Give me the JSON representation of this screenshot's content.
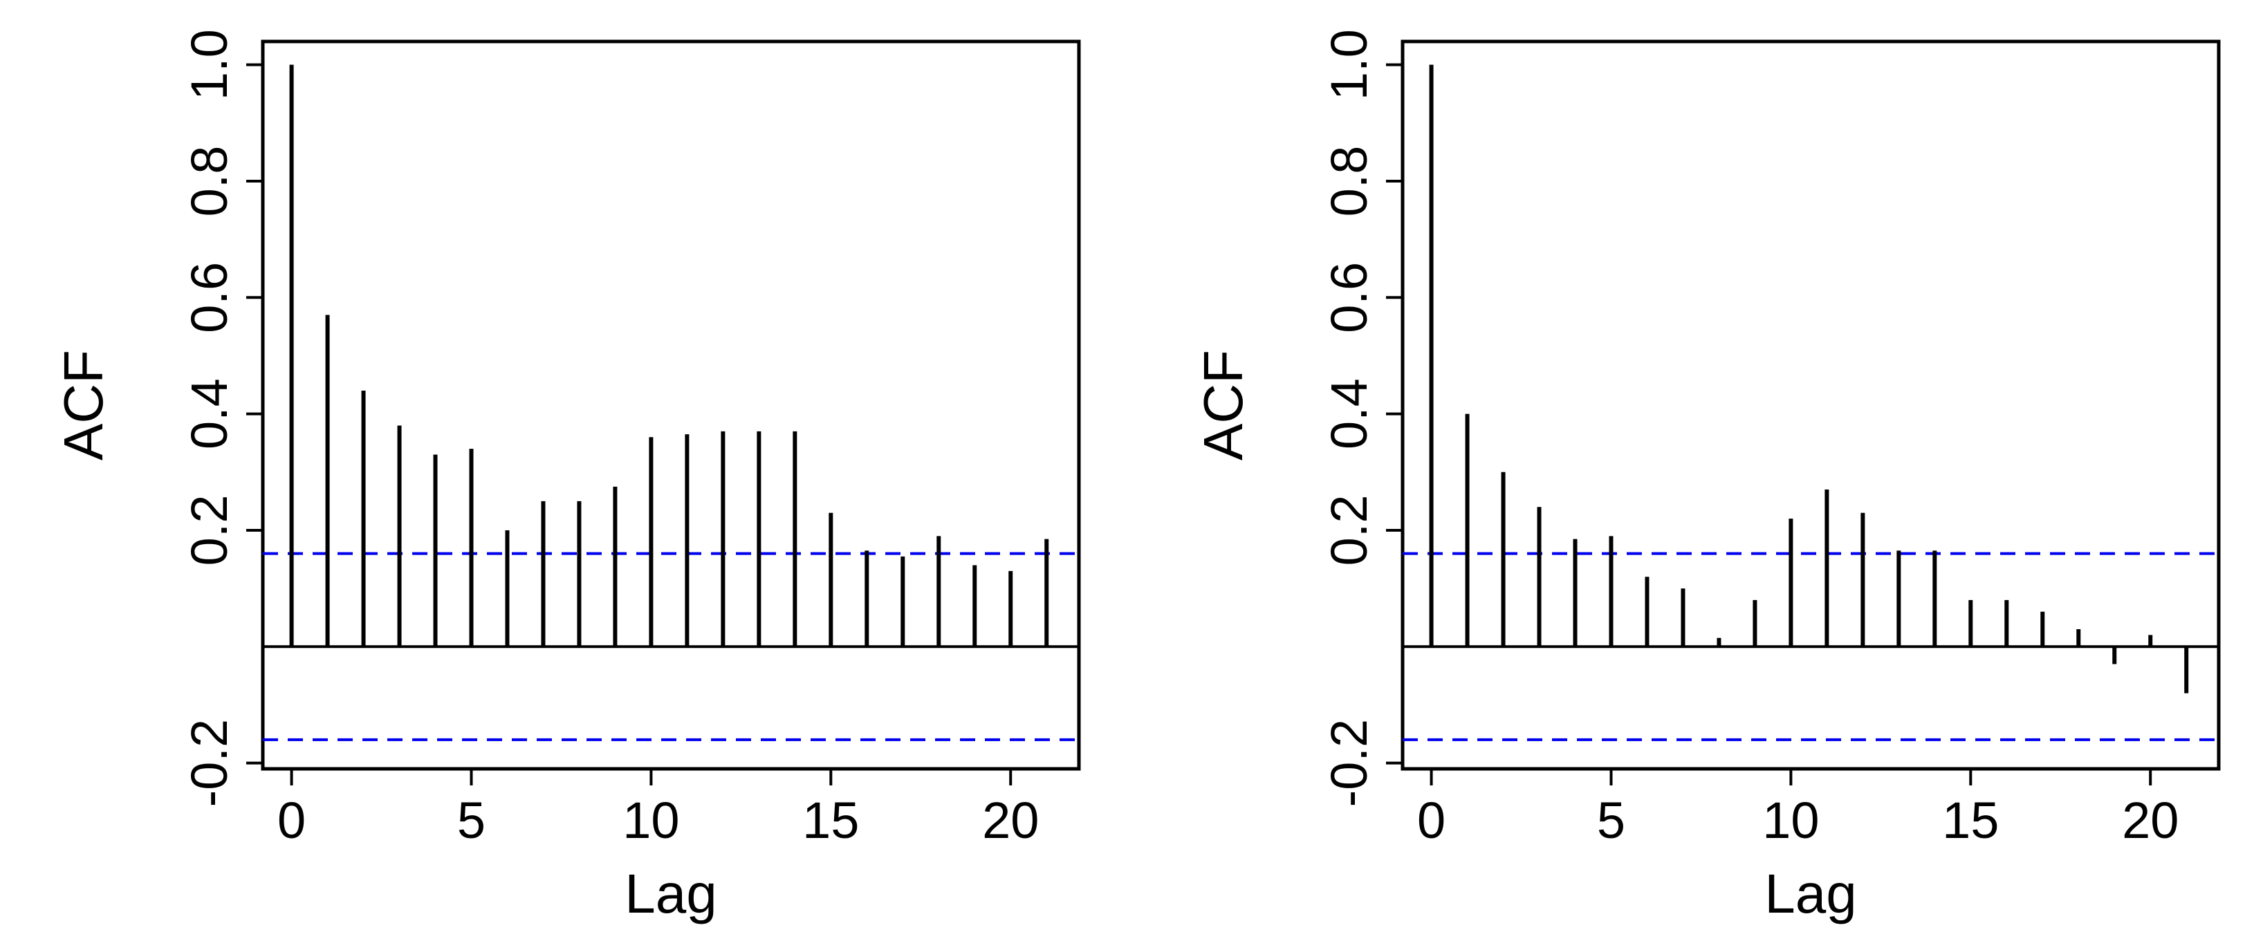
{
  "colors": {
    "bars": "#000000",
    "confidence_bound": "#0000ee",
    "frame": "#000000",
    "background": "#ffffff"
  },
  "chart_data": [
    {
      "type": "bar",
      "subtype": "acf",
      "xlabel": "Lag",
      "ylabel": "ACF",
      "xlim": [
        -0.8,
        21.9
      ],
      "ylim": [
        -0.2,
        1.0
      ],
      "xticks": [
        0,
        5,
        10,
        15,
        20
      ],
      "yticks": [
        -0.2,
        0.2,
        0.4,
        0.6,
        0.8,
        1.0
      ],
      "xtick_labels": [
        "0",
        "5",
        "10",
        "15",
        "20"
      ],
      "ytick_labels": [
        "-0.2",
        "0.2",
        "0.4",
        "0.6",
        "0.8",
        "1.0"
      ],
      "confidence_bounds": [
        0.16,
        -0.16
      ],
      "grid": false,
      "lags": [
        0,
        1,
        2,
        3,
        4,
        5,
        6,
        7,
        8,
        9,
        10,
        11,
        12,
        13,
        14,
        15,
        16,
        17,
        18,
        19,
        20,
        21
      ],
      "values": [
        1.0,
        0.57,
        0.44,
        0.38,
        0.33,
        0.34,
        0.2,
        0.25,
        0.25,
        0.275,
        0.36,
        0.365,
        0.37,
        0.37,
        0.37,
        0.23,
        0.165,
        0.155,
        0.19,
        0.14,
        0.13,
        0.185
      ]
    },
    {
      "type": "bar",
      "subtype": "acf",
      "xlabel": "Lag",
      "ylabel": "ACF",
      "xlim": [
        -0.8,
        21.9
      ],
      "ylim": [
        -0.2,
        1.0
      ],
      "xticks": [
        0,
        5,
        10,
        15,
        20
      ],
      "yticks": [
        -0.2,
        0.2,
        0.4,
        0.6,
        0.8,
        1.0
      ],
      "xtick_labels": [
        "0",
        "5",
        "10",
        "15",
        "20"
      ],
      "ytick_labels": [
        "-0.2",
        "0.2",
        "0.4",
        "0.6",
        "0.8",
        "1.0"
      ],
      "confidence_bounds": [
        0.16,
        -0.16
      ],
      "grid": false,
      "lags": [
        0,
        1,
        2,
        3,
        4,
        5,
        6,
        7,
        8,
        9,
        10,
        11,
        12,
        13,
        14,
        15,
        16,
        17,
        18,
        19,
        20,
        21
      ],
      "values": [
        1.0,
        0.4,
        0.3,
        0.24,
        0.185,
        0.19,
        0.12,
        0.1,
        0.015,
        0.08,
        0.22,
        0.27,
        0.23,
        0.165,
        0.165,
        0.08,
        0.08,
        0.06,
        0.03,
        -0.03,
        0.02,
        -0.08
      ]
    }
  ]
}
